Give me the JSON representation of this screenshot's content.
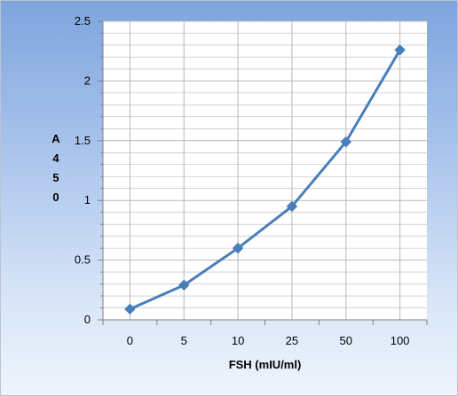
{
  "chart_data": {
    "type": "line",
    "categories": [
      "0",
      "5",
      "10",
      "25",
      "50",
      "100"
    ],
    "series": [
      {
        "values": [
          0.09,
          0.29,
          0.6,
          0.95,
          1.49,
          2.26
        ]
      }
    ],
    "xlabel": "FSH (mIU/ml)",
    "ylabel_chars": [
      "A",
      "4",
      "5",
      "0"
    ],
    "ylim": [
      0,
      2.5
    ],
    "yticks": [
      "0",
      "0.5",
      "1",
      "1.5",
      "2",
      "2.5"
    ],
    "ytick_values": [
      0,
      0.5,
      1,
      1.5,
      2,
      2.5
    ],
    "minor_ystep": 0.1,
    "grid": true,
    "legend": "none",
    "marker": "diamond",
    "colors": {
      "series": "#4a7ebb",
      "plot_bg": "#ffffff",
      "grid": "#b8b8b8",
      "axis": "#808080"
    }
  }
}
